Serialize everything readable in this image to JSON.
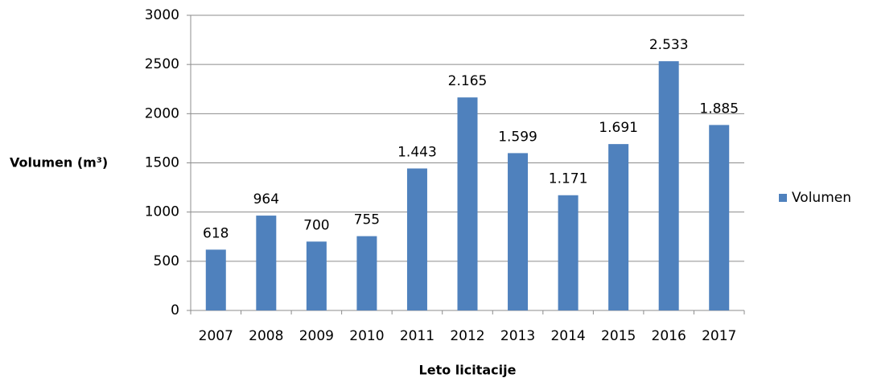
{
  "chart_data": {
    "type": "bar",
    "x_label": "Leto licitacije",
    "y_label": "Volumen (m³)",
    "categories": [
      "2007",
      "2008",
      "2009",
      "2010",
      "2011",
      "2012",
      "2013",
      "2014",
      "2015",
      "2016",
      "2017"
    ],
    "series": [
      {
        "name": "Volumen",
        "color": "#4f81bd",
        "values": [
          618,
          964,
          700,
          755,
          1443,
          2165,
          1599,
          1171,
          1691,
          2533,
          1885
        ],
        "value_labels": [
          "618",
          "964",
          "700",
          "755",
          "1.443",
          "2.165",
          "1.599",
          "1.171",
          "1.691",
          "2.533",
          "1.885"
        ]
      }
    ],
    "ylim": [
      0,
      3000
    ],
    "yticks": [
      0,
      500,
      1000,
      1500,
      2000,
      2500,
      3000
    ],
    "grid": true,
    "legend": "right"
  }
}
